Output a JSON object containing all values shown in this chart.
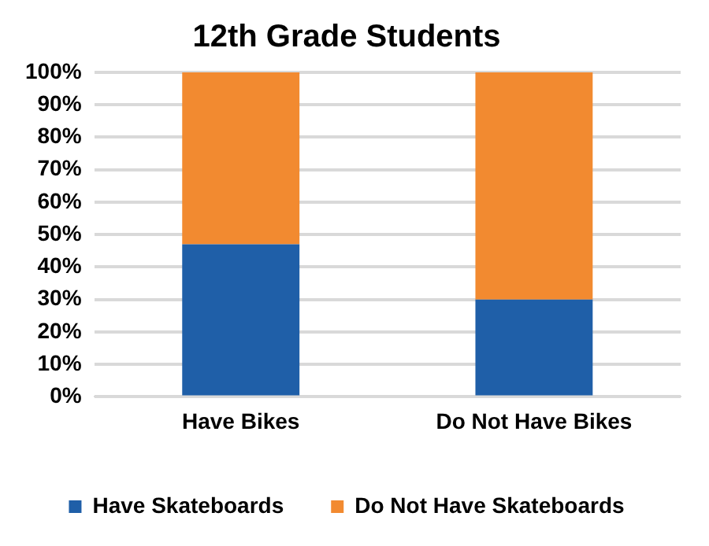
{
  "chart_data": {
    "type": "bar",
    "title": "12th Grade Students",
    "categories": [
      "Have Bikes",
      "Do Not Have Bikes"
    ],
    "stacked": true,
    "series": [
      {
        "name": "Have Skateboards",
        "color": "#1f5fa8",
        "values": [
          47,
          30
        ]
      },
      {
        "name": "Do Not Have Skateboards",
        "color": "#f28a30",
        "values": [
          53,
          70
        ]
      }
    ],
    "ylim": [
      0,
      100
    ],
    "yticks": [
      {
        "value": 0,
        "label": "0%"
      },
      {
        "value": 10,
        "label": "10%"
      },
      {
        "value": 20,
        "label": "20%"
      },
      {
        "value": 30,
        "label": "30%"
      },
      {
        "value": 40,
        "label": "40%"
      },
      {
        "value": 50,
        "label": "50%"
      },
      {
        "value": 60,
        "label": "60%"
      },
      {
        "value": 70,
        "label": "70%"
      },
      {
        "value": 80,
        "label": "80%"
      },
      {
        "value": 90,
        "label": "90%"
      },
      {
        "value": 100,
        "label": "100%"
      }
    ],
    "grid": "y",
    "legend": "bottom"
  }
}
